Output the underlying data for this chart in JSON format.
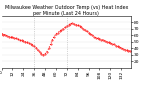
{
  "title1": "Milwaukee Weather Outdoor Temp (vs) Heat Index per Minute (Last 24 Hours)",
  "title2": "Outdoor Temp",
  "line_color": "#ff0000",
  "background_color": "#ffffff",
  "grid_color": "#bbbbbb",
  "ylim": [
    10,
    90
  ],
  "y_right_values": [
    80,
    70,
    60,
    50,
    40,
    30,
    20
  ],
  "x_points": [
    0,
    1,
    2,
    3,
    4,
    5,
    6,
    7,
    8,
    9,
    10,
    11,
    12,
    13,
    14,
    15,
    16,
    17,
    18,
    19,
    20,
    21,
    22,
    23,
    24,
    25,
    26,
    27,
    28,
    29,
    30,
    31,
    32,
    33,
    34,
    35,
    36,
    37,
    38,
    39,
    40,
    41,
    42,
    43,
    44,
    45,
    46,
    47,
    48,
    49,
    50,
    51,
    52,
    53,
    54,
    55,
    56,
    57,
    58,
    59,
    60,
    61,
    62,
    63,
    64,
    65,
    66,
    67,
    68,
    69,
    70,
    71,
    72,
    73,
    74,
    75,
    76,
    77,
    78,
    79,
    80,
    81,
    82,
    83,
    84,
    85,
    86,
    87,
    88,
    89,
    90,
    91,
    92,
    93,
    94,
    95,
    96,
    97,
    98,
    99,
    100,
    101,
    102,
    103,
    104,
    105,
    106,
    107,
    108,
    109,
    110,
    111,
    112,
    113,
    114,
    115,
    116,
    117,
    118,
    119,
    120,
    121,
    122,
    123,
    124,
    125,
    126,
    127,
    128,
    129,
    130,
    131,
    132,
    133,
    134,
    135,
    136,
    137,
    138,
    139,
    140,
    141,
    142,
    143
  ],
  "y_points": [
    62,
    62,
    61,
    61,
    60,
    60,
    59,
    59,
    58,
    58,
    57,
    57,
    57,
    56,
    56,
    55,
    55,
    54,
    54,
    53,
    53,
    52,
    52,
    51,
    51,
    50,
    50,
    49,
    49,
    48,
    48,
    47,
    47,
    46,
    45,
    44,
    43,
    42,
    41,
    39,
    37,
    36,
    34,
    33,
    31,
    30,
    30,
    31,
    32,
    33,
    35,
    37,
    40,
    43,
    46,
    50,
    53,
    56,
    58,
    60,
    62,
    63,
    64,
    65,
    66,
    67,
    68,
    69,
    70,
    71,
    72,
    73,
    74,
    75,
    76,
    77,
    77,
    78,
    78,
    78,
    77,
    77,
    76,
    76,
    75,
    75,
    74,
    73,
    72,
    71,
    70,
    69,
    68,
    67,
    66,
    65,
    64,
    63,
    62,
    61,
    60,
    59,
    58,
    57,
    56,
    56,
    55,
    55,
    54,
    54,
    53,
    53,
    52,
    52,
    51,
    50,
    50,
    49,
    49,
    48,
    48,
    47,
    47,
    46,
    46,
    45,
    44,
    44,
    43,
    42,
    42,
    41,
    40,
    40,
    39,
    39,
    38,
    38,
    37,
    37,
    36,
    36,
    36,
    36
  ],
  "vline_positions": [
    36,
    72
  ],
  "vline_color": "#999999",
  "title_fontsize": 3.5,
  "tick_fontsize": 3.2,
  "xlim": [
    0,
    143
  ]
}
